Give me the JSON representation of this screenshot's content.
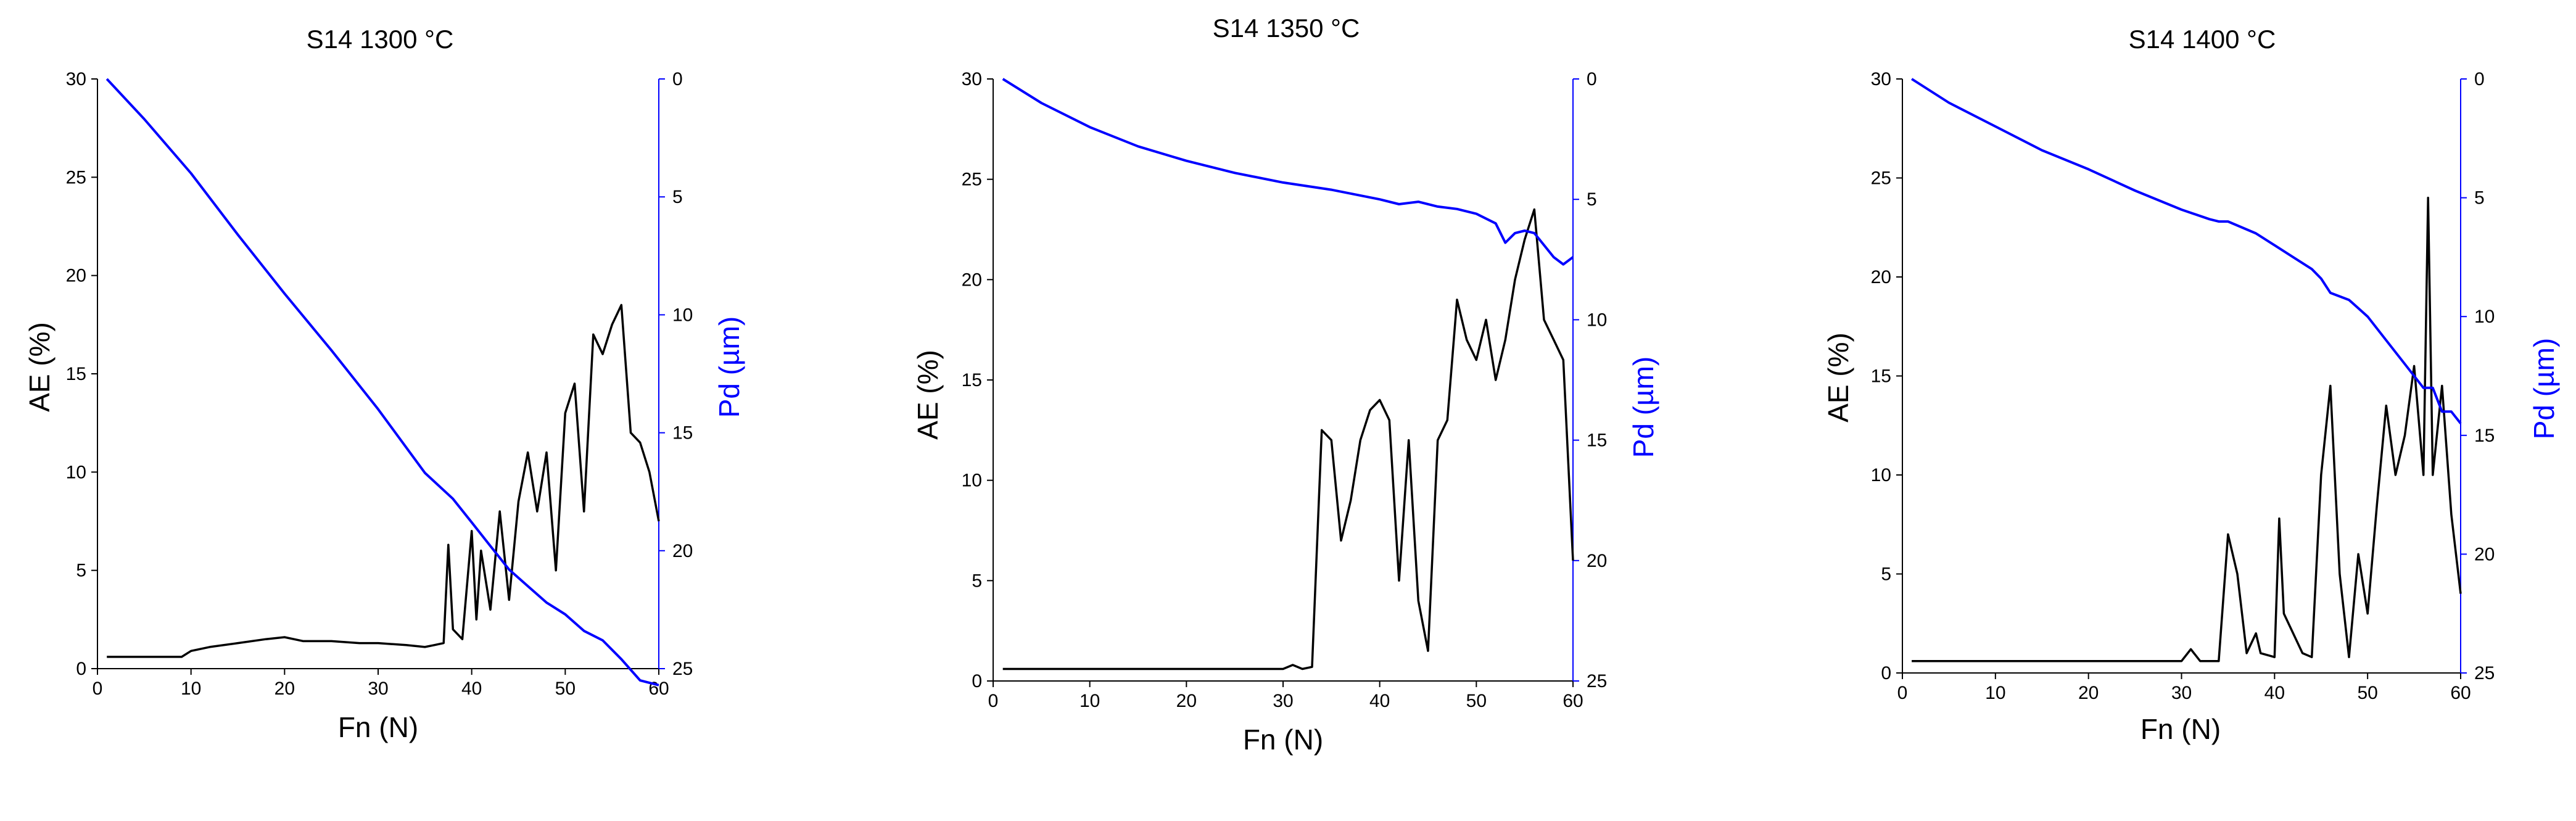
{
  "colors": {
    "ae": "#000000",
    "pd": "#0000ff",
    "background": "#ffffff"
  },
  "chart_data": [
    {
      "type": "line",
      "title": "S14 1300 °C",
      "xlabel": "Fn (N)",
      "ylabel": "AE (%)",
      "y2label": "Pd (µm)",
      "xlim": [
        0,
        60
      ],
      "ylim": [
        0,
        30
      ],
      "y2lim": [
        0,
        25
      ],
      "y2_inverted": true,
      "xticks": [
        "0",
        "10",
        "20",
        "30",
        "40",
        "50",
        "60"
      ],
      "yticks": [
        "0",
        "5",
        "10",
        "15",
        "20",
        "25",
        "30"
      ],
      "y2ticks": [
        "0",
        "5",
        "10",
        "15",
        "20",
        "25"
      ],
      "grid": false,
      "series": [
        {
          "axis": "left",
          "color": "#000000",
          "x": [
            1,
            5,
            9,
            10,
            12,
            15,
            18,
            20,
            22,
            25,
            28,
            30,
            33,
            35,
            36,
            37,
            37.5,
            38,
            39,
            40,
            40.5,
            41,
            42,
            43,
            44,
            45,
            46,
            47,
            48,
            49,
            50,
            51,
            52,
            53,
            54,
            55,
            56,
            57,
            58,
            59,
            60
          ],
          "y": [
            0.6,
            0.6,
            0.6,
            0.9,
            1.1,
            1.3,
            1.5,
            1.6,
            1.4,
            1.4,
            1.3,
            1.3,
            1.2,
            1.1,
            1.2,
            1.3,
            6.3,
            2.0,
            1.5,
            7.0,
            2.5,
            6.0,
            3.0,
            8.0,
            3.5,
            8.5,
            11.0,
            8.0,
            11.0,
            5.0,
            13.0,
            14.5,
            8.0,
            17.0,
            16.0,
            17.5,
            18.5,
            12.0,
            11.5,
            10.0,
            7.5
          ]
        },
        {
          "axis": "right",
          "color": "#0000ff",
          "x": [
            1,
            5,
            10,
            15,
            20,
            25,
            30,
            35,
            38,
            40,
            42,
            44,
            46,
            48,
            50,
            52,
            54,
            56,
            58,
            59,
            60
          ],
          "y": [
            0,
            1.7,
            4,
            6.6,
            9.1,
            11.5,
            14,
            16.7,
            17.8,
            18.8,
            19.8,
            20.8,
            21.5,
            22.2,
            22.7,
            23.4,
            23.8,
            24.6,
            25.5,
            25.6,
            25.7
          ]
        }
      ]
    },
    {
      "type": "line",
      "title": "S14 1350 °C",
      "xlabel": "Fn (N)",
      "ylabel": "AE (%)",
      "y2label": "Pd (µm)",
      "xlim": [
        0,
        60
      ],
      "ylim": [
        0,
        30
      ],
      "y2lim": [
        0,
        25
      ],
      "y2_inverted": true,
      "xticks": [
        "0",
        "10",
        "20",
        "30",
        "40",
        "50",
        "60"
      ],
      "yticks": [
        "0",
        "5",
        "10",
        "15",
        "20",
        "25",
        "30"
      ],
      "y2ticks": [
        "0",
        "5",
        "10",
        "15",
        "20",
        "25"
      ],
      "grid": false,
      "series": [
        {
          "axis": "left",
          "color": "#000000",
          "x": [
            1,
            10,
            20,
            30,
            31,
            32,
            33,
            34,
            35,
            36,
            37,
            38,
            39,
            40,
            41,
            42,
            43,
            44,
            45,
            46,
            47,
            48,
            49,
            50,
            51,
            52,
            53,
            54,
            55,
            56,
            57,
            58,
            59,
            60
          ],
          "y": [
            0.6,
            0.6,
            0.6,
            0.6,
            0.8,
            0.6,
            0.7,
            12.5,
            12.0,
            7.0,
            9.0,
            12.0,
            13.5,
            14.0,
            13.0,
            5.0,
            12.0,
            4.0,
            1.5,
            12.0,
            13.0,
            19.0,
            17.0,
            16.0,
            18.0,
            15.0,
            17.0,
            20.0,
            22.0,
            23.5,
            18.0,
            17.0,
            16.0,
            6.0
          ]
        },
        {
          "axis": "right",
          "color": "#0000ff",
          "x": [
            1,
            5,
            10,
            15,
            20,
            25,
            30,
            35,
            40,
            42,
            44,
            46,
            48,
            50,
            52,
            53,
            54,
            55,
            56,
            57,
            58,
            59,
            60
          ],
          "y": [
            0,
            1.0,
            2.0,
            2.8,
            3.4,
            3.9,
            4.3,
            4.6,
            5.0,
            5.2,
            5.1,
            5.3,
            5.4,
            5.6,
            6.0,
            6.8,
            6.4,
            6.3,
            6.4,
            6.9,
            7.4,
            7.7,
            7.4
          ]
        }
      ]
    },
    {
      "type": "line",
      "title": "S14 1400 °C",
      "xlabel": "Fn (N)",
      "ylabel": "AE (%)",
      "y2label": "Pd (µm)",
      "xlim": [
        0,
        60
      ],
      "ylim": [
        0,
        30
      ],
      "y2lim": [
        0,
        25
      ],
      "y2_inverted": true,
      "xticks": [
        "0",
        "10",
        "20",
        "30",
        "40",
        "50",
        "60"
      ],
      "yticks": [
        "0",
        "5",
        "10",
        "15",
        "20",
        "25",
        "30"
      ],
      "y2ticks": [
        "0",
        "5",
        "10",
        "15",
        "20",
        "25"
      ],
      "grid": false,
      "series": [
        {
          "axis": "left",
          "color": "#000000",
          "x": [
            1,
            10,
            20,
            30,
            31,
            32,
            34,
            35,
            36,
            37,
            38,
            38.5,
            40,
            40.5,
            41,
            43,
            44,
            45,
            46,
            47,
            48,
            49,
            50,
            51,
            52,
            53,
            54,
            55,
            56,
            56.5,
            57,
            58,
            59,
            60
          ],
          "y": [
            0.6,
            0.6,
            0.6,
            0.6,
            1.2,
            0.6,
            0.6,
            7.0,
            5.0,
            1.0,
            2.0,
            1.0,
            0.8,
            7.8,
            3.0,
            1.0,
            0.8,
            10.0,
            14.5,
            5.0,
            0.8,
            6.0,
            3.0,
            8.5,
            13.5,
            10.0,
            12.0,
            15.5,
            10.0,
            24.0,
            10.0,
            14.5,
            8.0,
            4.0
          ]
        },
        {
          "axis": "right",
          "color": "#0000ff",
          "x": [
            1,
            5,
            10,
            15,
            20,
            25,
            30,
            33,
            34,
            35,
            38,
            40,
            42,
            44,
            45,
            46,
            48,
            50,
            52,
            54,
            56,
            57,
            58,
            59,
            60
          ],
          "y": [
            0,
            1.0,
            2.0,
            3.0,
            3.8,
            4.7,
            5.5,
            5.9,
            6.0,
            6.0,
            6.5,
            7.0,
            7.5,
            8.0,
            8.4,
            9.0,
            9.3,
            10.0,
            11.0,
            12.0,
            13.0,
            13.0,
            14.0,
            14.0,
            14.5
          ]
        }
      ]
    }
  ]
}
